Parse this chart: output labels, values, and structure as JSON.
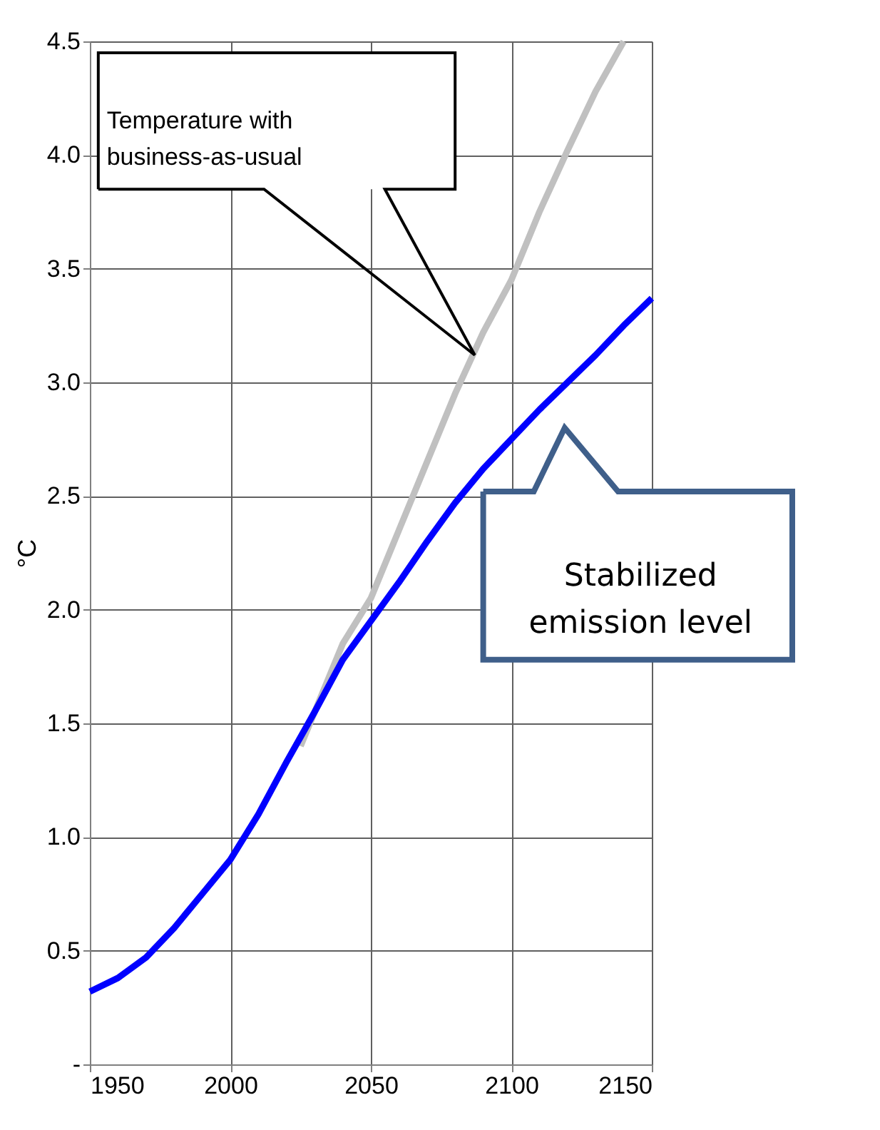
{
  "chart_data": {
    "type": "line",
    "ylabel": "°C",
    "xlim": [
      1950,
      2150
    ],
    "xticks": [
      1950,
      2000,
      2050,
      2100,
      2150
    ],
    "ylim": [
      0,
      4.5
    ],
    "yticks": [
      {
        "value": 0,
        "label": "-"
      },
      0.5,
      {
        "value": 1,
        "label": "1.0"
      },
      1.5,
      {
        "value": 2,
        "label": "2.0"
      },
      2.5,
      {
        "value": 3,
        "label": "3.0"
      },
      3.5,
      {
        "value": 4,
        "label": "4.0"
      },
      4.5
    ],
    "grid": true,
    "marker": "none",
    "line_style": "solid",
    "series": [
      {
        "color": "#c0c0c0",
        "x": [
          2025,
          2030,
          2040,
          2050,
          2060,
          2070,
          2080,
          2090,
          2100,
          2110,
          2120,
          2130,
          2140
        ],
        "values": [
          1.4,
          1.55,
          1.85,
          2.05,
          2.35,
          2.65,
          2.95,
          3.22,
          3.45,
          3.75,
          4.02,
          4.28,
          4.5
        ]
      },
      {
        "color": "#0000ff",
        "x": [
          1950,
          1960,
          1970,
          1980,
          1990,
          2000,
          2010,
          2020,
          2030,
          2040,
          2050,
          2060,
          2070,
          2080,
          2090,
          2100,
          2110,
          2120,
          2130,
          2140,
          2150
        ],
        "values": [
          0.32,
          0.38,
          0.47,
          0.6,
          0.75,
          0.9,
          1.1,
          1.33,
          1.55,
          1.78,
          1.95,
          2.12,
          2.3,
          2.47,
          2.62,
          2.75,
          2.88,
          3.0,
          3.12,
          3.25,
          3.37
        ]
      }
    ],
    "annotations": [
      "Temperature with\nbusiness-as-usual",
      "Stabilized\nemission level"
    ]
  }
}
